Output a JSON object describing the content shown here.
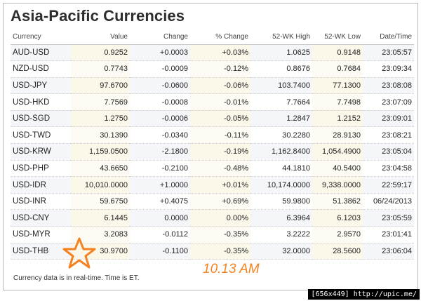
{
  "title": "Asia-Pacific Currencies",
  "columns": {
    "currency": "Currency",
    "value": "Value",
    "change": "Change",
    "pct_change": "% Change",
    "high": "52-WK High",
    "low": "52-WK Low",
    "datetime": "Date/Time"
  },
  "rows": [
    {
      "symbol": "AUD-USD",
      "value": "0.9252",
      "change": "+0.0003",
      "pct": "+0.03%",
      "high": "1.0625",
      "low": "0.9148",
      "time": "23:05:57",
      "dir": "pos"
    },
    {
      "symbol": "NZD-USD",
      "value": "0.7743",
      "change": "-0.0009",
      "pct": "-0.12%",
      "high": "0.8676",
      "low": "0.7684",
      "time": "23:09:34",
      "dir": "neg"
    },
    {
      "symbol": "USD-JPY",
      "value": "97.6700",
      "change": "-0.0600",
      "pct": "-0.06%",
      "high": "103.7400",
      "low": "77.1300",
      "time": "23:08:08",
      "dir": "neg"
    },
    {
      "symbol": "USD-HKD",
      "value": "7.7569",
      "change": "-0.0008",
      "pct": "-0.01%",
      "high": "7.7664",
      "low": "7.7498",
      "time": "23:07:09",
      "dir": "neg"
    },
    {
      "symbol": "USD-SGD",
      "value": "1.2750",
      "change": "-0.0006",
      "pct": "-0.05%",
      "high": "1.2847",
      "low": "1.2152",
      "time": "23:09:01",
      "dir": "neg"
    },
    {
      "symbol": "USD-TWD",
      "value": "30.1390",
      "change": "-0.0340",
      "pct": "-0.11%",
      "high": "30.2280",
      "low": "28.9130",
      "time": "23:08:21",
      "dir": "neg"
    },
    {
      "symbol": "USD-KRW",
      "value": "1,159.0500",
      "change": "-2.1800",
      "pct": "-0.19%",
      "high": "1,162.8400",
      "low": "1,054.4900",
      "time": "23:05:04",
      "dir": "neg"
    },
    {
      "symbol": "USD-PHP",
      "value": "43.6650",
      "change": "-0.2100",
      "pct": "-0.48%",
      "high": "44.1810",
      "low": "40.5400",
      "time": "23:04:58",
      "dir": "neg"
    },
    {
      "symbol": "USD-IDR",
      "value": "10,010.0000",
      "change": "+1.0000",
      "pct": "+0.01%",
      "high": "10,174.0000",
      "low": "9,338.0000",
      "time": "22:59:17",
      "dir": "pos"
    },
    {
      "symbol": "USD-INR",
      "value": "59.6750",
      "change": "+0.4075",
      "pct": "+0.69%",
      "high": "59.9800",
      "low": "51.3862",
      "time": "06/24/2013",
      "dir": "pos"
    },
    {
      "symbol": "USD-CNY",
      "value": "6.1445",
      "change": "0.0000",
      "pct": "0.00%",
      "high": "6.3964",
      "low": "6.1203",
      "time": "23:05:59",
      "dir": "flat"
    },
    {
      "symbol": "USD-MYR",
      "value": "3.2083",
      "change": "-0.0112",
      "pct": "-0.35%",
      "high": "3.2222",
      "low": "2.9570",
      "time": "23:01:41",
      "dir": "neg"
    },
    {
      "symbol": "USD-THB",
      "value": "30.9700",
      "change": "-0.1100",
      "pct": "-0.35%",
      "high": "32.0000",
      "low": "28.5600",
      "time": "23:06:04",
      "dir": "neg"
    }
  ],
  "footnote": "Currency data is in real-time. Time is ET.",
  "annotation": "10.13 AM",
  "watermark": "[656x449] http://upic.me/",
  "colors": {
    "title": "#2e2e2e",
    "symbol_link": "#1f4e96",
    "positive": "#2a9a2a",
    "negative": "#cc2222",
    "annotation": "#f58220"
  },
  "icons": {
    "star_mark": "star-outline-icon"
  }
}
